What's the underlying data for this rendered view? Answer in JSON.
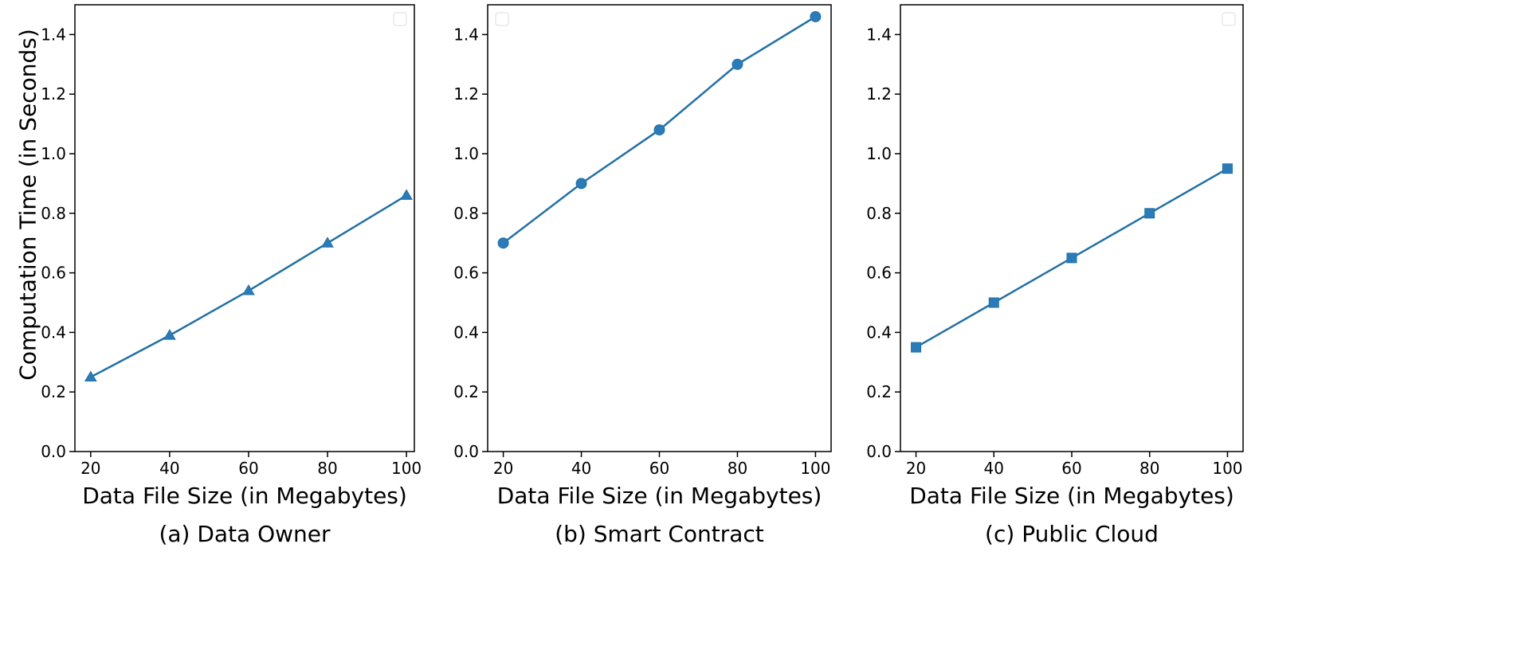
{
  "ylabel": "Computation Time (in Seconds)",
  "colors": {
    "line": "#2271a4",
    "marker": "#2b7bb9"
  },
  "chart_data": [
    {
      "type": "line",
      "title": "(a) Data Owner",
      "xlabel": "Data File Size (in Megabytes)",
      "ylabel": "Computation Time (in Seconds)",
      "x": [
        20,
        40,
        60,
        80,
        100
      ],
      "values": [
        0.25,
        0.39,
        0.54,
        0.7,
        0.86
      ],
      "marker": "triangle",
      "xlim": [
        16,
        102
      ],
      "ylim": [
        0,
        1.5
      ],
      "xticks": [
        20,
        40,
        60,
        80,
        100
      ],
      "yticks": [
        0.0,
        0.2,
        0.4,
        0.6,
        0.8,
        1.0,
        1.2,
        1.4
      ],
      "legend": "top-right",
      "grid": false
    },
    {
      "type": "line",
      "title": "(b) Smart Contract",
      "xlabel": "Data File Size (in Megabytes)",
      "ylabel": "",
      "x": [
        20,
        40,
        60,
        80,
        100
      ],
      "values": [
        0.7,
        0.9,
        1.08,
        1.3,
        1.46
      ],
      "marker": "circle",
      "xlim": [
        16,
        104
      ],
      "ylim": [
        0,
        1.5
      ],
      "xticks": [
        20,
        40,
        60,
        80,
        100
      ],
      "yticks": [
        0.0,
        0.2,
        0.4,
        0.6,
        0.8,
        1.0,
        1.2,
        1.4
      ],
      "legend": "top-left",
      "grid": false
    },
    {
      "type": "line",
      "title": "(c) Public Cloud",
      "xlabel": "Data File Size (in Megabytes)",
      "ylabel": "",
      "x": [
        20,
        40,
        60,
        80,
        100
      ],
      "values": [
        0.35,
        0.5,
        0.65,
        0.8,
        0.95
      ],
      "marker": "square",
      "xlim": [
        16,
        104
      ],
      "ylim": [
        0,
        1.5
      ],
      "xticks": [
        20,
        40,
        60,
        80,
        100
      ],
      "yticks": [
        0.0,
        0.2,
        0.4,
        0.6,
        0.8,
        1.0,
        1.2,
        1.4
      ],
      "legend": "top-right",
      "grid": false
    }
  ]
}
